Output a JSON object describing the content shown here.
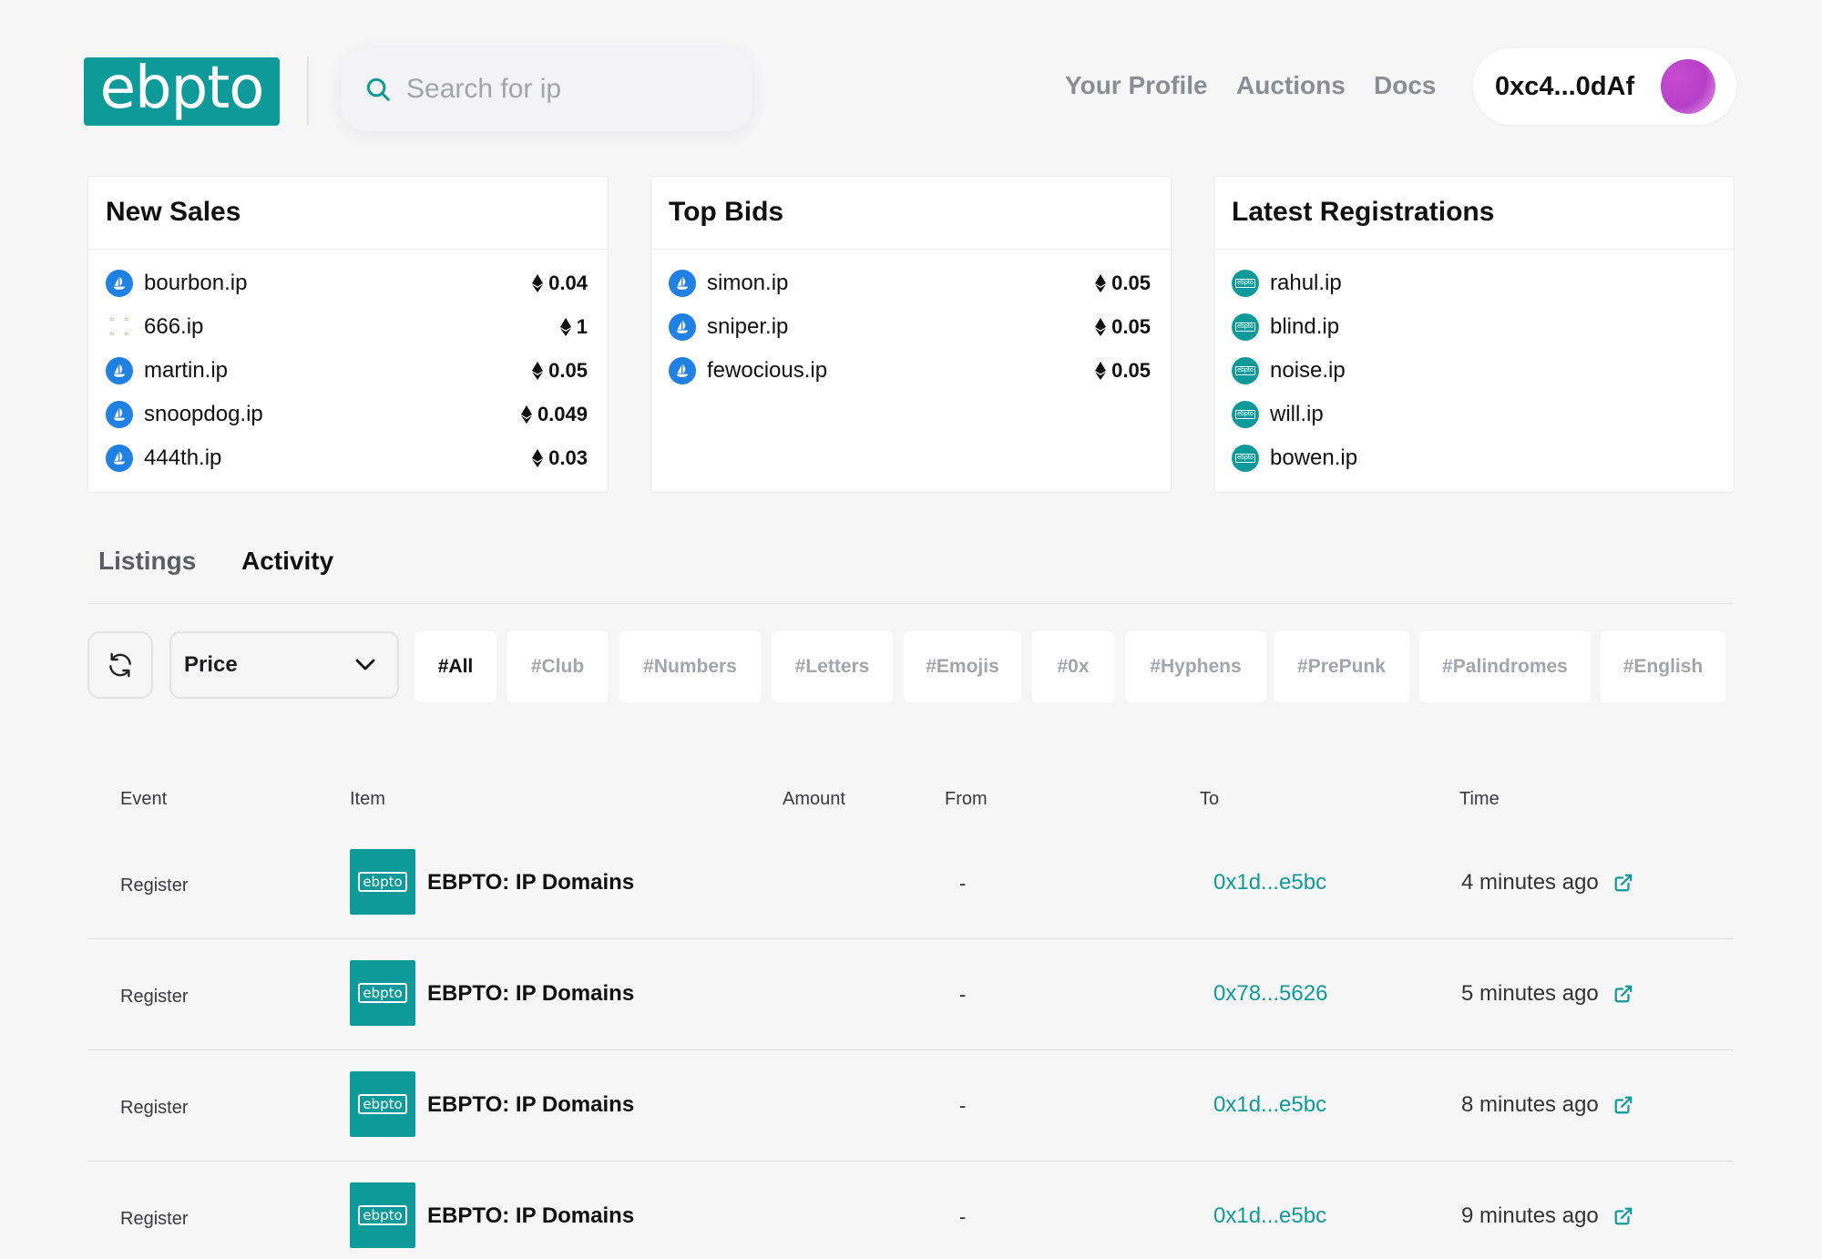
{
  "header": {
    "logo_text": "ebpto",
    "search_placeholder": "Search for ip",
    "nav": {
      "profile": "Your Profile",
      "auctions": "Auctions",
      "docs": "Docs"
    },
    "wallet_address": "0xc4...0dAf"
  },
  "cards": {
    "new_sales": {
      "title": "New Sales",
      "rows": [
        {
          "name": "bourbon.ip",
          "price": "0.04",
          "icon": "opensea-icon"
        },
        {
          "name": "666.ip",
          "price": "1",
          "icon": "looksrare-icon"
        },
        {
          "name": "martin.ip",
          "price": "0.05",
          "icon": "opensea-icon"
        },
        {
          "name": "snoopdog.ip",
          "price": "0.049",
          "icon": "opensea-icon"
        },
        {
          "name": "444th.ip",
          "price": "0.03",
          "icon": "opensea-icon"
        }
      ]
    },
    "top_bids": {
      "title": "Top Bids",
      "rows": [
        {
          "name": "simon.ip",
          "price": "0.05",
          "icon": "opensea-icon"
        },
        {
          "name": "sniper.ip",
          "price": "0.05",
          "icon": "opensea-icon"
        },
        {
          "name": "fewocious.ip",
          "price": "0.05",
          "icon": "opensea-icon"
        }
      ]
    },
    "latest_registrations": {
      "title": "Latest Registrations",
      "rows": [
        {
          "name": "rahul.ip",
          "icon": "ebpto-icon"
        },
        {
          "name": "blind.ip",
          "icon": "ebpto-icon"
        },
        {
          "name": "noise.ip",
          "icon": "ebpto-icon"
        },
        {
          "name": "will.ip",
          "icon": "ebpto-icon"
        },
        {
          "name": "bowen.ip",
          "icon": "ebpto-icon"
        }
      ]
    }
  },
  "tabs": {
    "listings": "Listings",
    "activity": "Activity",
    "active": "activity"
  },
  "filters": {
    "sort_select": "Price",
    "chips": [
      "#All",
      "#Club",
      "#Numbers",
      "#Letters",
      "#Emojis",
      "#0x",
      "#Hyphens",
      "#PrePunk",
      "#Palindromes",
      "#English"
    ],
    "active_chip": "#All"
  },
  "table": {
    "headers": {
      "event": "Event",
      "item": "Item",
      "amount": "Amount",
      "from": "From",
      "to": "To",
      "time": "Time"
    },
    "thumb_text": "ebpto",
    "rows": [
      {
        "event": "Register",
        "item": "EBPTO: IP Domains",
        "amount": "",
        "from": "-",
        "to": "0x1d...e5bc",
        "time": "4 minutes ago"
      },
      {
        "event": "Register",
        "item": "EBPTO: IP Domains",
        "amount": "",
        "from": "-",
        "to": "0x78...5626",
        "time": "5 minutes ago"
      },
      {
        "event": "Register",
        "item": "EBPTO: IP Domains",
        "amount": "",
        "from": "-",
        "to": "0x1d...e5bc",
        "time": "8 minutes ago"
      },
      {
        "event": "Register",
        "item": "EBPTO: IP Domains",
        "amount": "",
        "from": "-",
        "to": "0x1d...e5bc",
        "time": "9 minutes ago"
      }
    ]
  },
  "colors": {
    "brand": "#0f9a9a",
    "opensea": "#2081e2",
    "looksrare": "#f07c3c",
    "avatar": "#c84bd0"
  }
}
